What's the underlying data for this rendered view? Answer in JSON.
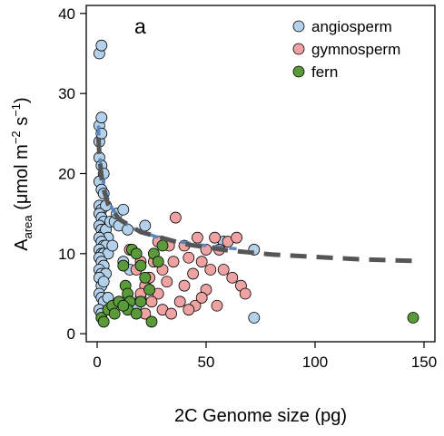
{
  "chart_data": {
    "type": "scatter",
    "panel_label": "a",
    "xlabel": "2C Genome size (pg)",
    "ylabel_main": "A",
    "ylabel_sub": "area",
    "ylabel_unit_open": " (μmol m",
    "ylabel_exp1": "−2",
    "ylabel_mid": " s",
    "ylabel_exp2": "−1",
    "ylabel_close": ")",
    "xlim": [
      -5,
      155
    ],
    "ylim": [
      -1,
      41
    ],
    "x_ticks": [
      0,
      50,
      100,
      150
    ],
    "x_tick_labels": [
      "0",
      "50",
      "100",
      "150"
    ],
    "y_ticks": [
      0,
      10,
      20,
      30,
      40
    ],
    "y_tick_labels": [
      "0",
      "10",
      "20",
      "30",
      "40"
    ],
    "grid": false,
    "legend_position": "top-right",
    "series": [
      {
        "name": "angiosperm",
        "color": "#b3d1ea",
        "points": [
          [
            1,
            35
          ],
          [
            2,
            36
          ],
          [
            1,
            26
          ],
          [
            2,
            27
          ],
          [
            1,
            24
          ],
          [
            2,
            25
          ],
          [
            1,
            22
          ],
          [
            2,
            21
          ],
          [
            3,
            20
          ],
          [
            1,
            19
          ],
          [
            2,
            18
          ],
          [
            3,
            17.5
          ],
          [
            1,
            16
          ],
          [
            2,
            15.5
          ],
          [
            4,
            16
          ],
          [
            1,
            15
          ],
          [
            2,
            14.5
          ],
          [
            3,
            14
          ],
          [
            1,
            13.5
          ],
          [
            2,
            13
          ],
          [
            3,
            12.5
          ],
          [
            4,
            13
          ],
          [
            5,
            12
          ],
          [
            6,
            14
          ],
          [
            1,
            12
          ],
          [
            2,
            11.5
          ],
          [
            3,
            11
          ],
          [
            4,
            11
          ],
          [
            1,
            10.5
          ],
          [
            2,
            10
          ],
          [
            3,
            10
          ],
          [
            5,
            10
          ],
          [
            7,
            11
          ],
          [
            1,
            9.5
          ],
          [
            2,
            9
          ],
          [
            3,
            8.5
          ],
          [
            1,
            8
          ],
          [
            2,
            7.5
          ],
          [
            4,
            7.5
          ],
          [
            1,
            7
          ],
          [
            2,
            6
          ],
          [
            3,
            6.5
          ],
          [
            1,
            5
          ],
          [
            2,
            4.5
          ],
          [
            3,
            4
          ],
          [
            1,
            3
          ],
          [
            2,
            2.5
          ],
          [
            5,
            4.5
          ],
          [
            8,
            14
          ],
          [
            9,
            15
          ],
          [
            10,
            13.5
          ],
          [
            12,
            15.5
          ],
          [
            14,
            13
          ],
          [
            12,
            9
          ],
          [
            15,
            8
          ],
          [
            20,
            4.5
          ],
          [
            18,
            3.5
          ],
          [
            10,
            4
          ],
          [
            22,
            13.5
          ],
          [
            58,
            11.5
          ],
          [
            72,
            10.5
          ],
          [
            72,
            2
          ]
        ]
      },
      {
        "name": "gymnosperm",
        "color": "#eea2a2",
        "points": [
          [
            15,
            10.5
          ],
          [
            18,
            8
          ],
          [
            20,
            9
          ],
          [
            22,
            6
          ],
          [
            24,
            7
          ],
          [
            26,
            9
          ],
          [
            28,
            5
          ],
          [
            30,
            8
          ],
          [
            32,
            6.5
          ],
          [
            33,
            11
          ],
          [
            35,
            9
          ],
          [
            36,
            14.5
          ],
          [
            38,
            4
          ],
          [
            40,
            6
          ],
          [
            40,
            11
          ],
          [
            42,
            9.5
          ],
          [
            44,
            7.5
          ],
          [
            45,
            3.5
          ],
          [
            46,
            12
          ],
          [
            48,
            9
          ],
          [
            50,
            10.5
          ],
          [
            50,
            5.5
          ],
          [
            52,
            8
          ],
          [
            54,
            12
          ],
          [
            55,
            3.5
          ],
          [
            56,
            10.5
          ],
          [
            58,
            8
          ],
          [
            60,
            11.5
          ],
          [
            62,
            7
          ],
          [
            64,
            12
          ],
          [
            66,
            6
          ],
          [
            68,
            5
          ],
          [
            30,
            3
          ],
          [
            34,
            2.5
          ],
          [
            25,
            4
          ],
          [
            22,
            2.5
          ],
          [
            42,
            3
          ],
          [
            48,
            4.5
          ],
          [
            28,
            11.5
          ],
          [
            20,
            5
          ]
        ]
      },
      {
        "name": "fern",
        "color": "#5a9a3a",
        "points": [
          [
            2,
            2
          ],
          [
            3,
            1.5
          ],
          [
            5,
            3
          ],
          [
            7,
            3.5
          ],
          [
            8,
            2.5
          ],
          [
            10,
            4
          ],
          [
            12,
            8.5
          ],
          [
            13,
            6
          ],
          [
            14,
            5
          ],
          [
            15,
            4
          ],
          [
            16,
            10.5
          ],
          [
            14,
            3
          ],
          [
            18,
            10
          ],
          [
            20,
            8.5
          ],
          [
            22,
            7
          ],
          [
            24,
            5.5
          ],
          [
            25,
            1.5
          ],
          [
            26,
            10
          ],
          [
            28,
            9
          ],
          [
            30,
            11
          ],
          [
            18,
            2.5
          ],
          [
            12,
            3.5
          ],
          [
            20,
            4
          ],
          [
            145,
            2
          ]
        ]
      }
    ],
    "fit_lines": [
      {
        "color": "#5b85bd",
        "style": "dashed",
        "points": [
          [
            0.6,
            26
          ],
          [
            1,
            23.5
          ],
          [
            1.5,
            21.5
          ],
          [
            2,
            20.3
          ],
          [
            3,
            18.7
          ],
          [
            4,
            17.6
          ],
          [
            5,
            16.8
          ],
          [
            7,
            15.6
          ],
          [
            10,
            14.5
          ],
          [
            15,
            13.4
          ],
          [
            20,
            12.7
          ],
          [
            30,
            11.9
          ],
          [
            40,
            11.4
          ],
          [
            50,
            11
          ],
          [
            60,
            10.7
          ],
          [
            64,
            10.6
          ]
        ]
      },
      {
        "color": "#555555",
        "style": "dashed",
        "points": [
          [
            0.6,
            24.5
          ],
          [
            1,
            22.5
          ],
          [
            2,
            19.5
          ],
          [
            3,
            18
          ],
          [
            5,
            16.2
          ],
          [
            10,
            14.3
          ],
          [
            20,
            12.7
          ],
          [
            40,
            11.2
          ],
          [
            60,
            10.4
          ],
          [
            80,
            9.9
          ],
          [
            100,
            9.6
          ],
          [
            120,
            9.3
          ],
          [
            145,
            9.1
          ]
        ]
      }
    ]
  }
}
